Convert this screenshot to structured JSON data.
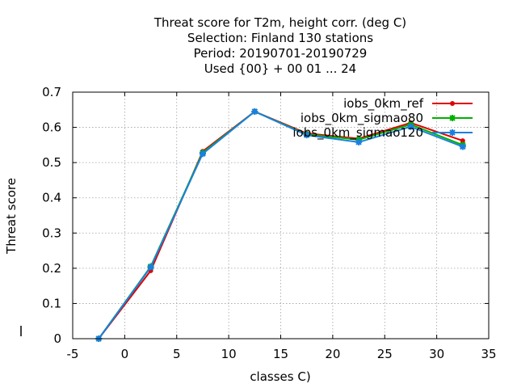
{
  "chart_data": {
    "type": "line",
    "title_lines": [
      "Threat score  for T2m, height corr. (deg C)",
      "Selection: Finland    130 stations",
      "Period: 20190701-20190729",
      "Used {00} + 00 01 ... 24"
    ],
    "xlabel": "classes C)",
    "ylabel": "Threat score",
    "xlim": [
      -5,
      35
    ],
    "ylim": [
      0,
      0.7
    ],
    "xticks": [
      "-5",
      "0",
      "5",
      "10",
      "15",
      "20",
      "25",
      "30",
      "35"
    ],
    "yticks": [
      "0",
      "0.1",
      "0.2",
      "0.3",
      "0.4",
      "0.5",
      "0.6",
      "0.7"
    ],
    "grid": true,
    "legend_position": "top-right",
    "x": [
      -2.5,
      2.5,
      7.5,
      12.5,
      17.5,
      22.5,
      27.5,
      32.5
    ],
    "series": [
      {
        "name": "iobs_0km_ref",
        "color": "#e00000",
        "marker": "dot",
        "values": [
          0.0,
          0.193,
          0.532,
          0.645,
          0.583,
          0.568,
          0.613,
          0.562
        ]
      },
      {
        "name": "iobs_0km_sigmao80",
        "color": "#00b000",
        "marker": "star",
        "values": [
          0.0,
          0.205,
          0.528,
          0.645,
          0.58,
          0.565,
          0.608,
          0.55
        ]
      },
      {
        "name": "iobs_0km_sigmao120",
        "color": "#1a80e0",
        "marker": "star",
        "values": [
          0.0,
          0.203,
          0.525,
          0.645,
          0.578,
          0.558,
          0.602,
          0.545
        ]
      }
    ]
  }
}
